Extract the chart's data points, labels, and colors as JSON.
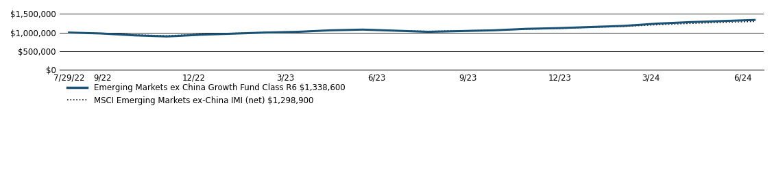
{
  "x_tick_labels": [
    "7/29/22",
    "9/22",
    "12/22",
    "3/23",
    "6/23",
    "9/23",
    "12/23",
    "3/24",
    "6/24"
  ],
  "y_ticks": [
    0,
    500000,
    1000000,
    1500000
  ],
  "y_tick_labels": [
    "$0",
    "$500,000",
    "$1,000,000",
    "$1,500,000"
  ],
  "ylim": [
    0,
    1600000
  ],
  "fund_color": "#1a5276",
  "fund_label": "Emerging Markets ex China Growth Fund Class R6 $1,338,600",
  "index_label": "MSCI Emerging Markets ex-China IMI (net) $1,298,900",
  "index_color": "#1a1a1a",
  "fund_values": [
    1000000,
    975000,
    925000,
    895000,
    940000,
    970000,
    1000000,
    1020000,
    1060000,
    1080000,
    1050000,
    1020000,
    1040000,
    1060000,
    1100000,
    1120000,
    1150000,
    1180000,
    1240000,
    1280000,
    1310000,
    1338600
  ],
  "index_values": [
    1000000,
    980000,
    940000,
    915000,
    955000,
    980000,
    1005000,
    1025000,
    1060000,
    1080000,
    1055000,
    1035000,
    1050000,
    1065000,
    1090000,
    1110000,
    1140000,
    1165000,
    1210000,
    1245000,
    1272000,
    1298900
  ],
  "n_points": 22,
  "background_color": "#ffffff",
  "x_ticks_pos": [
    0,
    1.1,
    4.1,
    7.1,
    10.1,
    13.1,
    16.1,
    19.1,
    22.1
  ],
  "x_total": 22.5
}
